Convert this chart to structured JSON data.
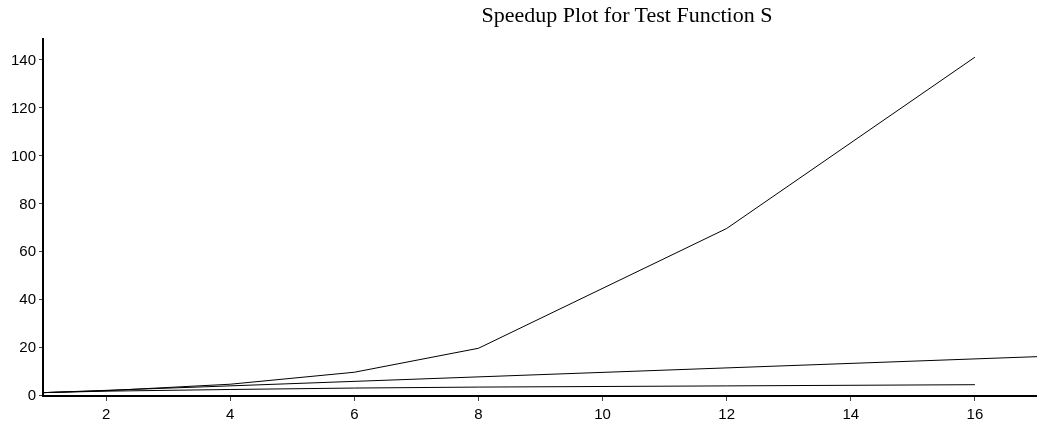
{
  "chart_data": {
    "type": "line",
    "title": "Speedup Plot for Test Function S",
    "xlim": [
      1,
      17
    ],
    "xticks": [
      2,
      4,
      6,
      8,
      10,
      12,
      14,
      16
    ],
    "ylim": [
      0,
      149
    ],
    "yticks": [
      0,
      20,
      40,
      60,
      80,
      100,
      120,
      140
    ],
    "marker": "none",
    "line_style": "solid",
    "series": [
      {
        "color": "#000000",
        "x": [
          1,
          2,
          4,
          6,
          8,
          12,
          16
        ],
        "values": [
          1,
          1.8,
          4.5,
          9.5,
          19.5,
          69.5,
          141
        ]
      },
      {
        "color": "#000000",
        "x": [
          1,
          17
        ],
        "values": [
          1,
          16
        ]
      },
      {
        "color": "#000000",
        "x": [
          1,
          2,
          4,
          6,
          8,
          12,
          16
        ],
        "values": [
          1,
          1.6,
          2.3,
          2.9,
          3.3,
          3.8,
          4.3
        ]
      }
    ]
  }
}
